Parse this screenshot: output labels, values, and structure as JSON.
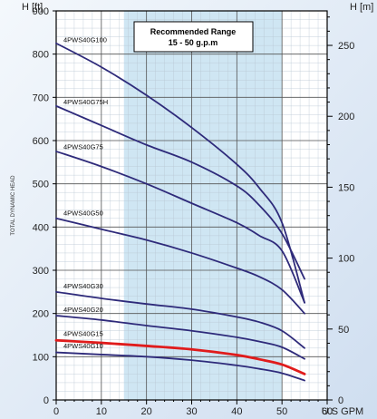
{
  "chart_data": {
    "type": "line",
    "xlabel": "U.S GPM",
    "ylabel_left": "H [ft]",
    "ylabel_right": "H [m]",
    "yaxis_side_label": "TOTAL DYNAMIC HEAD",
    "xlim": [
      0,
      60
    ],
    "ylim_ft": [
      0,
      900
    ],
    "ylim_m": [
      0,
      275
    ],
    "x_ticks": [
      "0",
      "10",
      "20",
      "30",
      "40",
      "50",
      "60"
    ],
    "y_ticks_ft": [
      "0",
      "100",
      "200",
      "300",
      "400",
      "500",
      "600",
      "700",
      "800",
      "900"
    ],
    "y_ticks_m": [
      "0",
      "50",
      "100",
      "150",
      "200",
      "250"
    ],
    "grid": true,
    "recommended_range": {
      "x": [
        15,
        50
      ],
      "title": "Recommended Range",
      "subtitle": "15 - 50 g.p.m"
    },
    "series": [
      {
        "name": "4PWS40G100",
        "color": "#2e2a7a",
        "x": [
          0,
          10,
          20,
          30,
          40,
          45,
          50,
          55
        ],
        "y": [
          825,
          770,
          705,
          630,
          545,
          490,
          410,
          225
        ]
      },
      {
        "name": "4PWS40G75H",
        "color": "#2e2a7a",
        "x": [
          0,
          10,
          20,
          30,
          40,
          45,
          50,
          55
        ],
        "y": [
          680,
          635,
          590,
          550,
          495,
          450,
          385,
          280
        ]
      },
      {
        "name": "4PWS40G75",
        "color": "#2e2a7a",
        "x": [
          0,
          10,
          20,
          30,
          40,
          45,
          50,
          55
        ],
        "y": [
          575,
          540,
          500,
          455,
          410,
          380,
          345,
          225
        ]
      },
      {
        "name": "4PWS40G50",
        "color": "#2e2a7a",
        "x": [
          0,
          10,
          20,
          30,
          40,
          45,
          50,
          55
        ],
        "y": [
          420,
          395,
          370,
          340,
          305,
          285,
          255,
          200
        ]
      },
      {
        "name": "4PWS40G30",
        "color": "#2e2a7a",
        "x": [
          0,
          10,
          20,
          30,
          40,
          45,
          50,
          55
        ],
        "y": [
          250,
          235,
          222,
          210,
          192,
          180,
          160,
          120
        ]
      },
      {
        "name": "4PWS40G20",
        "color": "#2e2a7a",
        "x": [
          0,
          10,
          20,
          30,
          40,
          45,
          50,
          55
        ],
        "y": [
          195,
          185,
          172,
          160,
          145,
          135,
          122,
          95
        ]
      },
      {
        "name": "4PWS40G15",
        "color": "#e01b1b",
        "x": [
          0,
          10,
          20,
          30,
          40,
          45,
          50,
          55
        ],
        "y": [
          138,
          132,
          125,
          117,
          104,
          94,
          82,
          60
        ]
      },
      {
        "name": "4PWS40G10",
        "color": "#2e2a7a",
        "x": [
          0,
          10,
          20,
          30,
          40,
          45,
          50,
          55
        ],
        "y": [
          110,
          105,
          100,
          92,
          80,
          72,
          62,
          45
        ]
      }
    ]
  }
}
